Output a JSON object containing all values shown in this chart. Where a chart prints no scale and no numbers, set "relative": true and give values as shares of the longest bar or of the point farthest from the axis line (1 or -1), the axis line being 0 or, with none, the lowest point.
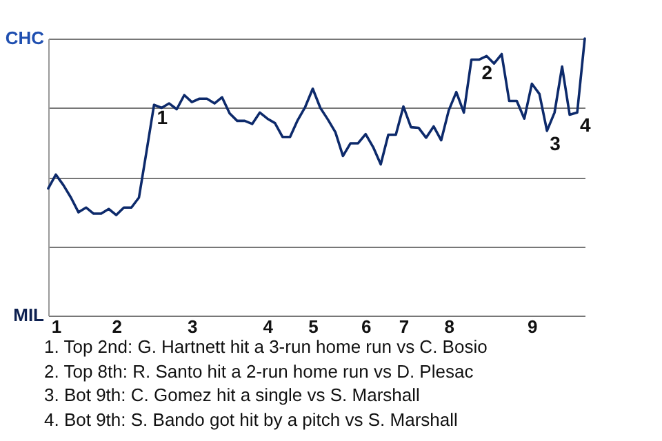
{
  "chart_data": {
    "type": "line",
    "relative": true,
    "categories": [
      null,
      "1",
      null,
      null,
      null,
      null,
      null,
      null,
      null,
      "2",
      null,
      null,
      null,
      null,
      null,
      null,
      null,
      null,
      null,
      "3",
      null,
      null,
      null,
      null,
      null,
      null,
      null,
      null,
      null,
      "4",
      null,
      null,
      null,
      null,
      null,
      "5",
      null,
      null,
      null,
      null,
      null,
      null,
      "6",
      null,
      null,
      null,
      null,
      "7",
      null,
      null,
      null,
      null,
      null,
      "8",
      null,
      null,
      null,
      null,
      null,
      null,
      null,
      null,
      null,
      null,
      "9",
      null,
      null,
      null,
      null,
      null,
      null,
      null
    ],
    "series": [
      {
        "color": "#0d2a6b",
        "values": [
          0.459,
          0.509,
          0.471,
          0.426,
          0.373,
          0.39,
          0.368,
          0.368,
          0.385,
          0.363,
          0.39,
          0.39,
          0.426,
          0.592,
          0.761,
          0.75,
          0.766,
          0.745,
          0.796,
          0.771,
          0.783,
          0.783,
          0.766,
          0.788,
          0.73,
          0.703,
          0.703,
          0.692,
          0.733,
          0.711,
          0.695,
          0.645,
          0.645,
          0.705,
          0.753,
          0.819,
          0.75,
          0.708,
          0.662,
          0.576,
          0.622,
          0.622,
          0.655,
          0.608,
          0.546,
          0.653,
          0.653,
          0.755,
          0.68,
          0.678,
          0.642,
          0.683,
          0.633,
          0.741,
          0.807,
          0.733,
          0.924,
          0.924,
          0.937,
          0.91,
          0.944,
          0.775,
          0.775,
          0.711,
          0.837,
          0.8,
          0.667,
          0.733,
          0.899,
          0.725,
          0.733,
          1
        ],
        "name": null
      }
    ],
    "grid": "y",
    "annotations": [
      "CHC",
      "MIL",
      {
        "text": "1",
        "y": 0.761
      },
      {
        "text": "2",
        "y": 0.924
      },
      {
        "text": "3",
        "y": 0.667
      },
      {
        "text": "4",
        "y": 0.733
      },
      "1. Top 2nd: G. Hartnett hit a 3-run home run vs C. Bosio",
      "2. Top 8th: R. Santo hit a 2-run home run vs D. Plesac",
      "3. Bot 9th: C. Gomez hit a single vs S. Marshall",
      "4. Bot 9th: S. Bando got hit by a pitch vs S. Marshall"
    ]
  }
}
